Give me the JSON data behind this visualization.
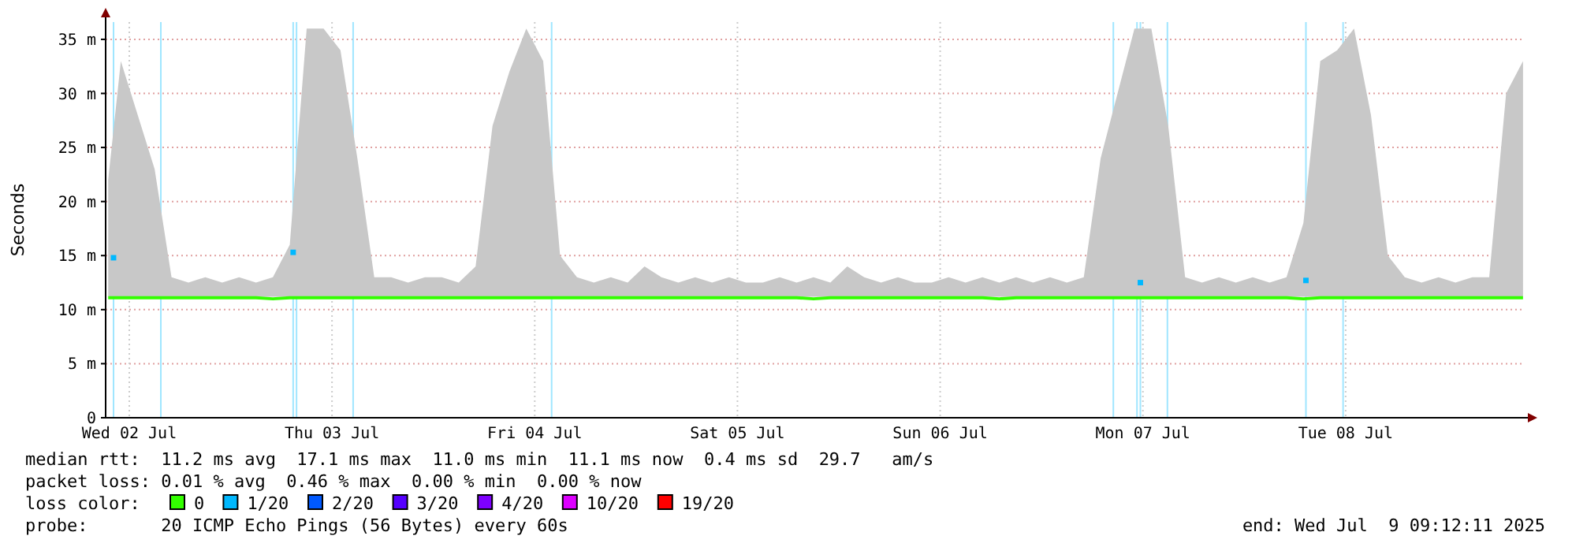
{
  "chart_data": {
    "type": "line",
    "ylabel": "Seconds",
    "legend_title": "loss color:",
    "legend": "bottom",
    "grid": true,
    "xlim": [
      "2025-07-02T09:12",
      "2025-07-09T09:12"
    ],
    "xticks": [
      {
        "value": "2025-07-02T12:00",
        "label": "Wed 02 Jul"
      },
      {
        "value": "2025-07-03T12:00",
        "label": "Thu 03 Jul"
      },
      {
        "value": "2025-07-04T12:00",
        "label": "Fri 04 Jul"
      },
      {
        "value": "2025-07-05T12:00",
        "label": "Sat 05 Jul"
      },
      {
        "value": "2025-07-06T12:00",
        "label": "Sun 06 Jul"
      },
      {
        "value": "2025-07-07T12:00",
        "label": "Mon 07 Jul"
      },
      {
        "value": "2025-07-08T12:00",
        "label": "Tue 08 Jul"
      }
    ],
    "ylim": [
      0,
      36.6
    ],
    "yticks": [
      0,
      {
        "value": 5,
        "label": "5 m"
      },
      {
        "value": 10,
        "label": "10 m"
      },
      {
        "value": 15,
        "label": "15 m"
      },
      {
        "value": 20,
        "label": "20 m"
      },
      {
        "value": 25,
        "label": "25 m"
      },
      {
        "value": 30,
        "label": "30 m"
      },
      {
        "value": 35,
        "label": "35 m"
      }
    ],
    "x": [
      "2025-07-02T09:30",
      "2025-07-02T11:00",
      "2025-07-02T13:00",
      "2025-07-02T15:00",
      "2025-07-02T17:00",
      "2025-07-02T19:00",
      "2025-07-02T21:00",
      "2025-07-02T23:00",
      "2025-07-03T01:00",
      "2025-07-03T03:00",
      "2025-07-03T05:00",
      "2025-07-03T07:00",
      "2025-07-03T09:00",
      "2025-07-03T11:00",
      "2025-07-03T13:00",
      "2025-07-03T15:00",
      "2025-07-03T17:00",
      "2025-07-03T19:00",
      "2025-07-03T21:00",
      "2025-07-03T23:00",
      "2025-07-04T01:00",
      "2025-07-04T03:00",
      "2025-07-04T05:00",
      "2025-07-04T07:00",
      "2025-07-04T09:00",
      "2025-07-04T11:00",
      "2025-07-04T13:00",
      "2025-07-04T15:00",
      "2025-07-04T17:00",
      "2025-07-04T19:00",
      "2025-07-04T21:00",
      "2025-07-04T23:00",
      "2025-07-05T01:00",
      "2025-07-05T03:00",
      "2025-07-05T05:00",
      "2025-07-05T07:00",
      "2025-07-05T09:00",
      "2025-07-05T11:00",
      "2025-07-05T13:00",
      "2025-07-05T15:00",
      "2025-07-05T17:00",
      "2025-07-05T19:00",
      "2025-07-05T21:00",
      "2025-07-05T23:00",
      "2025-07-06T01:00",
      "2025-07-06T03:00",
      "2025-07-06T05:00",
      "2025-07-06T07:00",
      "2025-07-06T09:00",
      "2025-07-06T11:00",
      "2025-07-06T13:00",
      "2025-07-06T15:00",
      "2025-07-06T17:00",
      "2025-07-06T19:00",
      "2025-07-06T21:00",
      "2025-07-06T23:00",
      "2025-07-07T01:00",
      "2025-07-07T03:00",
      "2025-07-07T05:00",
      "2025-07-07T07:00",
      "2025-07-07T09:00",
      "2025-07-07T11:00",
      "2025-07-07T13:00",
      "2025-07-07T15:00",
      "2025-07-07T17:00",
      "2025-07-07T19:00",
      "2025-07-07T21:00",
      "2025-07-07T23:00",
      "2025-07-08T01:00",
      "2025-07-08T03:00",
      "2025-07-08T05:00",
      "2025-07-08T07:00",
      "2025-07-08T09:00",
      "2025-07-08T11:00",
      "2025-07-08T13:00",
      "2025-07-08T15:00",
      "2025-07-08T17:00",
      "2025-07-08T19:00",
      "2025-07-08T21:00",
      "2025-07-08T23:00",
      "2025-07-09T01:00",
      "2025-07-09T03:00",
      "2025-07-09T05:00",
      "2025-07-09T07:00",
      "2025-07-09T09:00"
    ],
    "series": [
      {
        "name": "0",
        "color": "#33ff00",
        "marker": "none",
        "values": [
          11.1,
          11.1,
          11.1,
          11.1,
          11.1,
          11.1,
          11.1,
          11.1,
          11.1,
          11.1,
          11.0,
          11.1,
          11.1,
          11.1,
          11.1,
          11.1,
          11.1,
          11.1,
          11.1,
          11.1,
          11.1,
          11.1,
          11.1,
          11.1,
          11.1,
          11.1,
          11.1,
          11.1,
          11.1,
          11.1,
          11.1,
          11.1,
          11.1,
          11.1,
          11.1,
          11.1,
          11.1,
          11.1,
          11.1,
          11.1,
          11.1,
          11.1,
          11.0,
          11.1,
          11.1,
          11.1,
          11.1,
          11.1,
          11.1,
          11.1,
          11.1,
          11.1,
          11.1,
          11.0,
          11.1,
          11.1,
          11.1,
          11.1,
          11.1,
          11.1,
          11.1,
          11.1,
          11.1,
          11.1,
          11.1,
          11.1,
          11.1,
          11.1,
          11.1,
          11.1,
          11.1,
          11.0,
          11.1,
          11.1,
          11.1,
          11.1,
          11.1,
          11.1,
          11.1,
          11.1,
          11.1,
          11.1,
          11.1,
          11.1,
          11.1
        ],
        "lower": [
          11.2,
          11.2,
          11.2,
          11.2,
          11.2,
          11.2,
          11.2,
          11.2,
          11.2,
          11.2,
          11.2,
          11.2,
          11.2,
          11.2,
          11.2,
          11.2,
          11.2,
          11.2,
          11.2,
          11.2,
          11.2,
          11.2,
          11.2,
          11.2,
          11.2,
          11.2,
          11.2,
          11.2,
          11.2,
          11.2,
          11.2,
          11.2,
          11.2,
          11.2,
          11.2,
          11.2,
          11.2,
          11.2,
          11.2,
          11.2,
          11.2,
          11.2,
          11.2,
          11.2,
          11.2,
          11.2,
          11.2,
          11.2,
          11.2,
          11.2,
          11.2,
          11.2,
          11.2,
          11.2,
          11.2,
          11.2,
          11.2,
          11.2,
          11.2,
          11.2,
          11.2,
          11.2,
          11.2,
          11.2,
          11.2,
          11.2,
          11.2,
          11.2,
          11.2,
          11.2,
          11.2,
          11.2,
          11.2,
          11.2,
          11.2,
          11.2,
          11.2,
          11.2,
          11.2,
          11.2,
          11.2,
          11.2,
          11.2,
          11.2,
          11.2
        ],
        "upper": [
          22,
          33,
          28,
          23,
          13,
          12.5,
          13,
          12.5,
          13,
          12.5,
          13,
          16,
          36,
          36,
          34,
          24,
          13,
          13,
          12.5,
          13,
          13,
          12.5,
          14,
          27,
          32,
          36,
          33,
          15,
          13,
          12.5,
          13,
          12.5,
          14,
          13,
          12.5,
          13,
          12.5,
          13,
          12.5,
          12.5,
          13,
          12.5,
          13,
          12.5,
          14,
          13,
          12.5,
          13,
          12.5,
          12.5,
          13,
          12.5,
          13,
          12.5,
          13,
          12.5,
          13,
          12.5,
          13,
          24,
          30,
          36,
          36,
          27,
          13,
          12.5,
          13,
          12.5,
          13,
          12.5,
          13,
          18,
          33,
          34,
          36,
          28,
          15,
          13,
          12.5,
          13,
          12.5,
          13,
          13,
          30,
          33
        ]
      },
      {
        "name": "1/20",
        "type": "scatter",
        "marker": "square",
        "color": "#00b8ff",
        "x": [
          "2025-07-02T10:08",
          "2025-07-03T07:24",
          "2025-07-07T11:42",
          "2025-07-08T07:18"
        ],
        "values": [
          14.8,
          15.3,
          12.5,
          12.7
        ]
      },
      {
        "name": "2/20",
        "type": "scatter",
        "marker": "square",
        "color": "#0059ff",
        "values": [
          null,
          null,
          null,
          null,
          null,
          null,
          null,
          null,
          null,
          null,
          null,
          null,
          null,
          null,
          null,
          null,
          null,
          null,
          null,
          null,
          null,
          null,
          null,
          null,
          null,
          null,
          null,
          null,
          null,
          null,
          null,
          null,
          null,
          null,
          null,
          null,
          null,
          null,
          null,
          null,
          null,
          null,
          null,
          null,
          null,
          null,
          null,
          null,
          null,
          null,
          null,
          null,
          null,
          null,
          null,
          null,
          null,
          null,
          null,
          null,
          null,
          null,
          null,
          null,
          null,
          null,
          null,
          null,
          null,
          null,
          null,
          null,
          null,
          null,
          null,
          null,
          null,
          null,
          null,
          null,
          null,
          null,
          null,
          null,
          null
        ]
      },
      {
        "name": "3/20",
        "type": "scatter",
        "marker": "square",
        "color": "#5500ff",
        "values": [
          null,
          null,
          null,
          null,
          null,
          null,
          null,
          null,
          null,
          null,
          null,
          null,
          null,
          null,
          null,
          null,
          null,
          null,
          null,
          null,
          null,
          null,
          null,
          null,
          null,
          null,
          null,
          null,
          null,
          null,
          null,
          null,
          null,
          null,
          null,
          null,
          null,
          null,
          null,
          null,
          null,
          null,
          null,
          null,
          null,
          null,
          null,
          null,
          null,
          null,
          null,
          null,
          null,
          null,
          null,
          null,
          null,
          null,
          null,
          null,
          null,
          null,
          null,
          null,
          null,
          null,
          null,
          null,
          null,
          null,
          null,
          null,
          null,
          null,
          null,
          null,
          null,
          null,
          null,
          null,
          null,
          null,
          null,
          null,
          null
        ]
      },
      {
        "name": "4/20",
        "type": "scatter",
        "marker": "square",
        "color": "#7e00ff",
        "values": [
          null,
          null,
          null,
          null,
          null,
          null,
          null,
          null,
          null,
          null,
          null,
          null,
          null,
          null,
          null,
          null,
          null,
          null,
          null,
          null,
          null,
          null,
          null,
          null,
          null,
          null,
          null,
          null,
          null,
          null,
          null,
          null,
          null,
          null,
          null,
          null,
          null,
          null,
          null,
          null,
          null,
          null,
          null,
          null,
          null,
          null,
          null,
          null,
          null,
          null,
          null,
          null,
          null,
          null,
          null,
          null,
          null,
          null,
          null,
          null,
          null,
          null,
          null,
          null,
          null,
          null,
          null,
          null,
          null,
          null,
          null,
          null,
          null,
          null,
          null,
          null,
          null,
          null,
          null,
          null,
          null,
          null,
          null,
          null,
          null
        ]
      },
      {
        "name": "10/20",
        "type": "scatter",
        "marker": "square",
        "color": "#dd00ff",
        "values": [
          null,
          null,
          null,
          null,
          null,
          null,
          null,
          null,
          null,
          null,
          null,
          null,
          null,
          null,
          null,
          null,
          null,
          null,
          null,
          null,
          null,
          null,
          null,
          null,
          null,
          null,
          null,
          null,
          null,
          null,
          null,
          null,
          null,
          null,
          null,
          null,
          null,
          null,
          null,
          null,
          null,
          null,
          null,
          null,
          null,
          null,
          null,
          null,
          null,
          null,
          null,
          null,
          null,
          null,
          null,
          null,
          null,
          null,
          null,
          null,
          null,
          null,
          null,
          null,
          null,
          null,
          null,
          null,
          null,
          null,
          null,
          null,
          null,
          null,
          null,
          null,
          null,
          null,
          null,
          null,
          null,
          null,
          null,
          null,
          null
        ]
      },
      {
        "name": "19/20",
        "type": "scatter",
        "marker": "square",
        "color": "#ff0000",
        "values": [
          null,
          null,
          null,
          null,
          null,
          null,
          null,
          null,
          null,
          null,
          null,
          null,
          null,
          null,
          null,
          null,
          null,
          null,
          null,
          null,
          null,
          null,
          null,
          null,
          null,
          null,
          null,
          null,
          null,
          null,
          null,
          null,
          null,
          null,
          null,
          null,
          null,
          null,
          null,
          null,
          null,
          null,
          null,
          null,
          null,
          null,
          null,
          null,
          null,
          null,
          null,
          null,
          null,
          null,
          null,
          null,
          null,
          null,
          null,
          null,
          null,
          null,
          null,
          null,
          null,
          null,
          null,
          null,
          null,
          null,
          null,
          null,
          null,
          null,
          null,
          null,
          null,
          null,
          null,
          null,
          null,
          null,
          null,
          null,
          null
        ]
      }
    ],
    "ref_lines": [
      {
        "axis": "x",
        "value": "2025-07-02T10:08",
        "color": "#a0e6ff"
      },
      {
        "axis": "x",
        "value": "2025-07-02T15:44",
        "color": "#a0e6ff"
      },
      {
        "axis": "x",
        "value": "2025-07-03T07:24",
        "color": "#a0e6ff"
      },
      {
        "axis": "x",
        "value": "2025-07-03T07:48",
        "color": "#a0e6ff"
      },
      {
        "axis": "x",
        "value": "2025-07-03T14:30",
        "color": "#a0e6ff"
      },
      {
        "axis": "x",
        "value": "2025-07-04T14:00",
        "color": "#a0e6ff"
      },
      {
        "axis": "x",
        "value": "2025-07-07T08:30",
        "color": "#a0e6ff"
      },
      {
        "axis": "x",
        "value": "2025-07-07T11:18",
        "color": "#a0e6ff"
      },
      {
        "axis": "x",
        "value": "2025-07-07T11:42",
        "color": "#a0e6ff"
      },
      {
        "axis": "x",
        "value": "2025-07-07T14:54",
        "color": "#a0e6ff"
      },
      {
        "axis": "x",
        "value": "2025-07-08T07:18",
        "color": "#a0e6ff"
      },
      {
        "axis": "x",
        "value": "2025-07-08T11:42",
        "color": "#a0e6ff"
      }
    ],
    "annotations": [
      "median rtt:  11.2 ms avg  17.1 ms max  11.0 ms min  11.1 ms now  0.4 ms sd  29.7   am/s",
      "packet loss: 0.01 % avg  0.46 % max  0.00 % min  0.00 % now",
      "probe:       20 ICMP Echo Pings (56 Bytes) every 60s",
      "end: Wed Jul  9 09:12:11 2025"
    ]
  }
}
